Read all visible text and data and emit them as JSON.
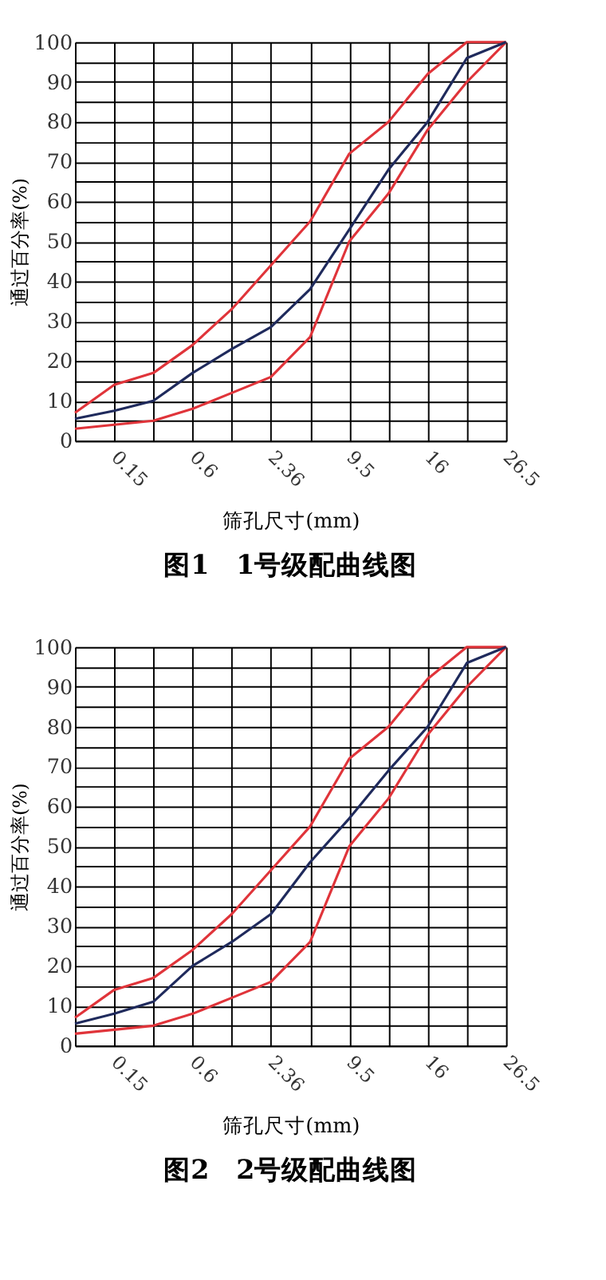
{
  "chart_data": [
    {
      "type": "line",
      "title": "图1　1号级配曲线图",
      "xlabel": "筛孔尺寸(mm)",
      "ylabel": "通过百分率(%)",
      "categories": [
        null,
        "0.15",
        null,
        "0.6",
        null,
        "2.36",
        null,
        "9.5",
        null,
        "16",
        null,
        "26.5"
      ],
      "ylim": [
        0,
        100
      ],
      "yticks": [
        0,
        {
          "value": 5,
          "label": null
        },
        10,
        {
          "value": 15,
          "label": null
        },
        20,
        {
          "value": 25,
          "label": null
        },
        30,
        {
          "value": 35,
          "label": null
        },
        40,
        {
          "value": 45,
          "label": null
        },
        50,
        {
          "value": 55,
          "label": null
        },
        60,
        {
          "value": 65,
          "label": null
        },
        70,
        {
          "value": 75,
          "label": null
        },
        80,
        {
          "value": 85,
          "label": null
        },
        90,
        {
          "value": 95,
          "label": null
        },
        100
      ],
      "grid": true,
      "marker": "none",
      "line_style": "solid",
      "series": [
        {
          "color": "#e0343a",
          "values": [
            7,
            14,
            17,
            24,
            33,
            44,
            55,
            72,
            80,
            92,
            100,
            100
          ]
        },
        {
          "color": "#e0343a",
          "values": [
            3,
            4,
            5,
            8,
            12,
            16,
            26,
            50,
            62,
            78,
            90,
            100
          ]
        },
        {
          "color": "#1f2a5c",
          "values": [
            5.5,
            7.5,
            10,
            17,
            23,
            28.5,
            38,
            53,
            68,
            80,
            96,
            100
          ]
        }
      ]
    },
    {
      "type": "line",
      "title": "图2　2号级配曲线图",
      "xlabel": "筛孔尺寸(mm)",
      "ylabel": "通过百分率(%)",
      "categories": [
        null,
        "0.15",
        null,
        "0.6",
        null,
        "2.36",
        null,
        "9.5",
        null,
        "16",
        null,
        "26.5"
      ],
      "ylim": [
        0,
        100
      ],
      "yticks": [
        0,
        {
          "value": 5,
          "label": null
        },
        10,
        {
          "value": 15,
          "label": null
        },
        20,
        {
          "value": 25,
          "label": null
        },
        30,
        {
          "value": 35,
          "label": null
        },
        40,
        {
          "value": 45,
          "label": null
        },
        50,
        {
          "value": 55,
          "label": null
        },
        60,
        {
          "value": 65,
          "label": null
        },
        70,
        {
          "value": 75,
          "label": null
        },
        80,
        {
          "value": 85,
          "label": null
        },
        90,
        {
          "value": 95,
          "label": null
        },
        100
      ],
      "grid": true,
      "marker": "none",
      "line_style": "solid",
      "series": [
        {
          "color": "#e0343a",
          "values": [
            7,
            14,
            17,
            24,
            33,
            44,
            55,
            72,
            80,
            92,
            100,
            100
          ]
        },
        {
          "color": "#e0343a",
          "values": [
            3,
            4,
            5,
            8,
            12,
            16,
            26,
            50,
            62,
            78,
            90,
            100
          ]
        },
        {
          "color": "#1f2a5c",
          "values": [
            5.5,
            8,
            11,
            20,
            26,
            33,
            46,
            57,
            69,
            80,
            96,
            100
          ]
        }
      ]
    }
  ]
}
